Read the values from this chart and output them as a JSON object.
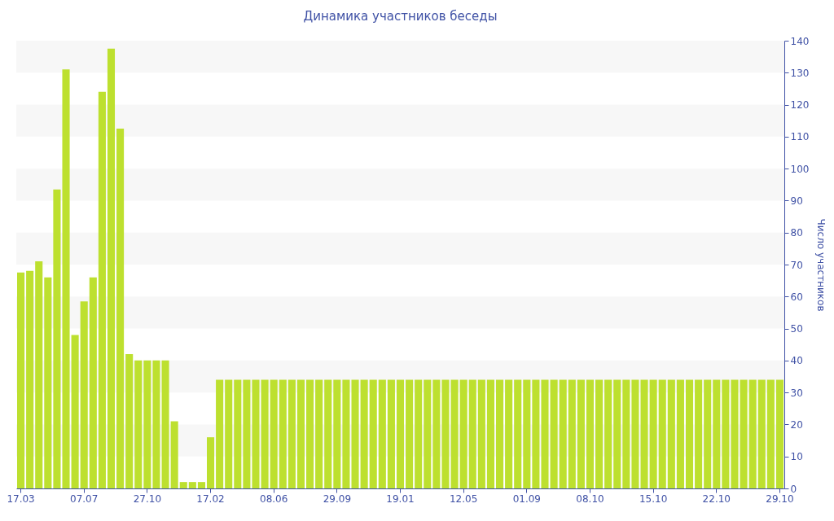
{
  "chart_data": {
    "type": "bar",
    "title": "Динамика участников беседы",
    "ylabel": "Число участников",
    "categories": [
      "17.03",
      null,
      null,
      null,
      null,
      null,
      null,
      "07.07",
      null,
      null,
      null,
      null,
      null,
      null,
      "27.10",
      null,
      null,
      null,
      null,
      null,
      null,
      "17.02",
      null,
      null,
      null,
      null,
      null,
      null,
      "08.06",
      null,
      null,
      null,
      null,
      null,
      null,
      "29.09",
      null,
      null,
      null,
      null,
      null,
      null,
      "19.01",
      null,
      null,
      null,
      null,
      null,
      null,
      "12.05",
      null,
      null,
      null,
      null,
      null,
      null,
      "01.09",
      null,
      null,
      null,
      null,
      null,
      null,
      "08.10",
      null,
      null,
      null,
      null,
      null,
      null,
      "15.10",
      null,
      null,
      null,
      null,
      null,
      null,
      "22.10",
      null,
      null,
      null,
      null,
      null,
      null,
      "29.10"
    ],
    "values": [
      67.5,
      68,
      71,
      66,
      93.5,
      131,
      48,
      58.5,
      66,
      124,
      137.5,
      112.5,
      42,
      40,
      40,
      40,
      40,
      21,
      2,
      2,
      2,
      16,
      34,
      34,
      34,
      34,
      34,
      34,
      34,
      34,
      34,
      34,
      34,
      34,
      34,
      34,
      34,
      34,
      34,
      34,
      34,
      34,
      34,
      34,
      34,
      34,
      34,
      34,
      34,
      34,
      34,
      34,
      34,
      34,
      34,
      34,
      34,
      34,
      34,
      34,
      34,
      34,
      34,
      34,
      34,
      34,
      34,
      34,
      34,
      34,
      34,
      34,
      34,
      34,
      34,
      34,
      34,
      34,
      34,
      34,
      34,
      34,
      34,
      34,
      34
    ],
    "color": "#bde02f",
    "ylim": [
      0,
      140
    ],
    "yticks": [
      0,
      10,
      20,
      30,
      40,
      50,
      60,
      70,
      80,
      90,
      100,
      110,
      120,
      130,
      140
    ]
  }
}
